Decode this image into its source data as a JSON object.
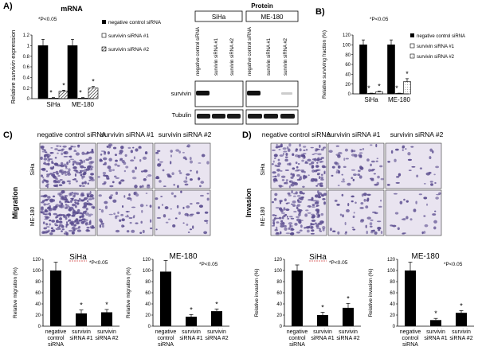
{
  "panels": {
    "A": {
      "label": "A)",
      "mrna_title": "mRNA",
      "protein_title": "Protein",
      "pvalue": "*P<0.05",
      "legend": [
        "negative control siRNA",
        "survivin siRNA #1",
        "survivin siRNA #2"
      ],
      "lane_labels": [
        "negative control siRNA",
        "survivin siRNA #1",
        "survivin siRNA #2"
      ],
      "cell_lines": [
        "SiHa",
        "ME-180"
      ],
      "blot_rows": [
        "survivin",
        "Tubulin"
      ],
      "star": "*"
    },
    "B": {
      "label": "B)",
      "pvalue": "*P<0.05",
      "legend": [
        "negative control siRNA",
        "survivin siRNA #1",
        "survivin siRNA #2"
      ],
      "star": "*"
    },
    "C": {
      "label": "C)",
      "side_title": "Migration",
      "col_headers": [
        "negative control siRNA",
        "survivin siRNA #1",
        "survivin siRNA #2"
      ],
      "row_labels": [
        "SiHa",
        "ME-180"
      ],
      "pvalue": "*P<0.05",
      "star": "*"
    },
    "D": {
      "label": "D)",
      "side_title": "Invasion",
      "col_headers": [
        "negative control siRNA",
        "survivin siRNA #1",
        "survivin siRNA #2"
      ],
      "row_labels": [
        "SiHa",
        "ME-180"
      ],
      "pvalue": "*P<0.05",
      "star": "*"
    }
  },
  "colors": {
    "black": "#000000",
    "white": "#ffffff",
    "hatch": "#555555",
    "micrograph_bg": "#e9e4f0",
    "cell": "#5b4d8f",
    "underline": "#d23c3c"
  },
  "chart_data": [
    {
      "id": "A-mrna",
      "type": "bar",
      "title": "mRNA",
      "ylabel": "Relative survivin expression",
      "ylim": [
        0,
        1.2
      ],
      "yticks": [
        0,
        0.2,
        0.4,
        0.6,
        0.8,
        1,
        1.2
      ],
      "categories": [
        "SiHa",
        "ME-180"
      ],
      "series": [
        {
          "name": "negative control siRNA",
          "values": [
            1.0,
            1.0
          ],
          "errors": [
            0.12,
            0.12
          ],
          "sig": [
            false,
            false
          ]
        },
        {
          "name": "survivin siRNA #1",
          "values": [
            0.01,
            0.01
          ],
          "errors": [
            0.01,
            0.01
          ],
          "sig": [
            true,
            true
          ]
        },
        {
          "name": "survivin siRNA #2",
          "values": [
            0.14,
            0.2
          ],
          "errors": [
            0.02,
            0.03
          ],
          "sig": [
            true,
            true
          ]
        }
      ]
    },
    {
      "id": "B-survival",
      "type": "bar",
      "title": "",
      "ylabel": "Relative surviving fraction (%)",
      "ylim": [
        0,
        120
      ],
      "yticks": [
        0,
        20,
        40,
        60,
        80,
        100,
        120
      ],
      "categories": [
        "SiHa",
        "ME-180"
      ],
      "series": [
        {
          "name": "negative control siRNA",
          "values": [
            100,
            100
          ],
          "errors": [
            10,
            10
          ],
          "sig": [
            false,
            false
          ]
        },
        {
          "name": "survivin siRNA #1",
          "values": [
            1,
            1
          ],
          "errors": [
            0.5,
            0.5
          ],
          "sig": [
            true,
            true
          ]
        },
        {
          "name": "survivin siRNA #2",
          "values": [
            4,
            25
          ],
          "errors": [
            1.5,
            6
          ],
          "sig": [
            true,
            true
          ]
        }
      ]
    },
    {
      "id": "C-siha",
      "type": "bar",
      "title": "SiHa",
      "ylabel": "Relative migration (%)",
      "ylim": [
        0,
        120
      ],
      "yticks": [
        0,
        20,
        40,
        60,
        80,
        100,
        120
      ],
      "categories": [
        "negative control siRNA",
        "survivin siRNA #1",
        "survivin siRNA #2"
      ],
      "values": [
        100,
        23,
        25
      ],
      "errors": [
        15,
        6,
        5
      ],
      "sig": [
        false,
        true,
        true
      ]
    },
    {
      "id": "C-me180",
      "type": "bar",
      "title": "ME-180",
      "ylabel": "Relative migration (%)",
      "ylim": [
        0,
        120
      ],
      "yticks": [
        0,
        20,
        40,
        60,
        80,
        100,
        120
      ],
      "categories": [
        "negative control siRNA",
        "survivin siRNA #1",
        "survivin siRNA #2"
      ],
      "values": [
        98,
        17,
        27
      ],
      "errors": [
        20,
        4,
        4
      ],
      "sig": [
        false,
        true,
        true
      ]
    },
    {
      "id": "D-siha",
      "type": "bar",
      "title": "SiHa",
      "ylabel": "Relative invasion (%)",
      "ylim": [
        0,
        120
      ],
      "yticks": [
        0,
        20,
        40,
        60,
        80,
        100,
        120
      ],
      "categories": [
        "negative control siRNA",
        "survivin siRNA #1",
        "survivin siRNA #2"
      ],
      "values": [
        100,
        20,
        33
      ],
      "errors": [
        10,
        5,
        8
      ],
      "sig": [
        false,
        true,
        true
      ]
    },
    {
      "id": "D-me180",
      "type": "bar",
      "title": "ME-180",
      "ylabel": "Relative invasion (%)",
      "ylim": [
        0,
        120
      ],
      "yticks": [
        0,
        20,
        40,
        60,
        80,
        100,
        120
      ],
      "categories": [
        "negative control siRNA",
        "survivin siRNA #1",
        "survivin siRNA #2"
      ],
      "values": [
        100,
        11,
        24
      ],
      "errors": [
        15,
        3,
        4
      ],
      "sig": [
        false,
        true,
        true
      ]
    }
  ]
}
